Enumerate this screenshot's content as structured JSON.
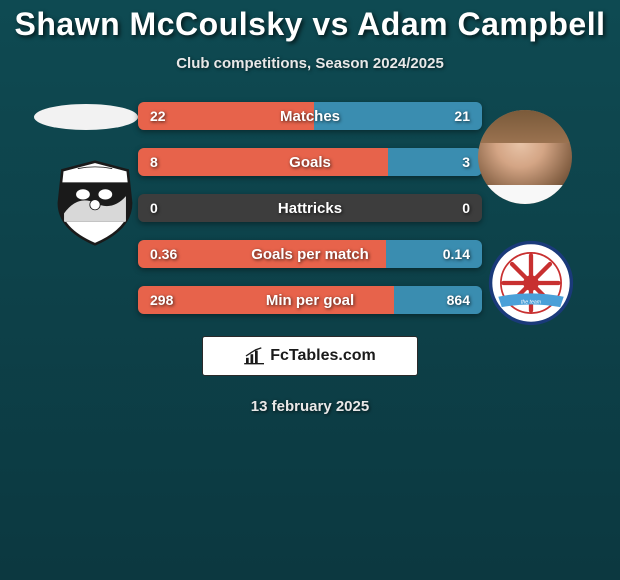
{
  "title": "Shawn McCoulsky vs Adam Campbell",
  "subtitle": "Club competitions, Season 2024/2025",
  "date": "13 february 2025",
  "footer_logo_text": "FcTables.com",
  "colors": {
    "left_bar": "#e7634b",
    "right_bar": "#3a8db0",
    "neutral_bar": "#3d3d3d",
    "background_start": "#0e4a52",
    "background_end": "#0c3840",
    "text": "#ffffff"
  },
  "fonts": {
    "title_size": 32,
    "subtitle_size": 15,
    "bar_label_size": 15,
    "value_size": 14
  },
  "rows": [
    {
      "label": "Matches",
      "left": "22",
      "right": "21",
      "left_pct": 51.2,
      "right_pct": 48.8
    },
    {
      "label": "Goals",
      "left": "8",
      "right": "3",
      "left_pct": 72.7,
      "right_pct": 27.3
    },
    {
      "label": "Hattricks",
      "left": "0",
      "right": "0",
      "left_pct": 50.0,
      "right_pct": 50.0,
      "neutral": true
    },
    {
      "label": "Goals per match",
      "left": "0.36",
      "right": "0.14",
      "left_pct": 72.0,
      "right_pct": 28.0
    },
    {
      "label": "Min per goal",
      "left": "298",
      "right": "864",
      "left_pct": 74.3,
      "right_pct": 25.7
    }
  ],
  "club_left": {
    "name": "Notts County style",
    "shield_fill": "#ffffff",
    "shield_stroke": "#1a1a1a",
    "inner": "#1a1a1a"
  },
  "club_right": {
    "name": "Hartlepool United",
    "outer": "#ffffff",
    "ring": "#1a3a7a",
    "center": "#ffffff",
    "spokes": "#c83030",
    "banner": "#4aa0d8"
  }
}
